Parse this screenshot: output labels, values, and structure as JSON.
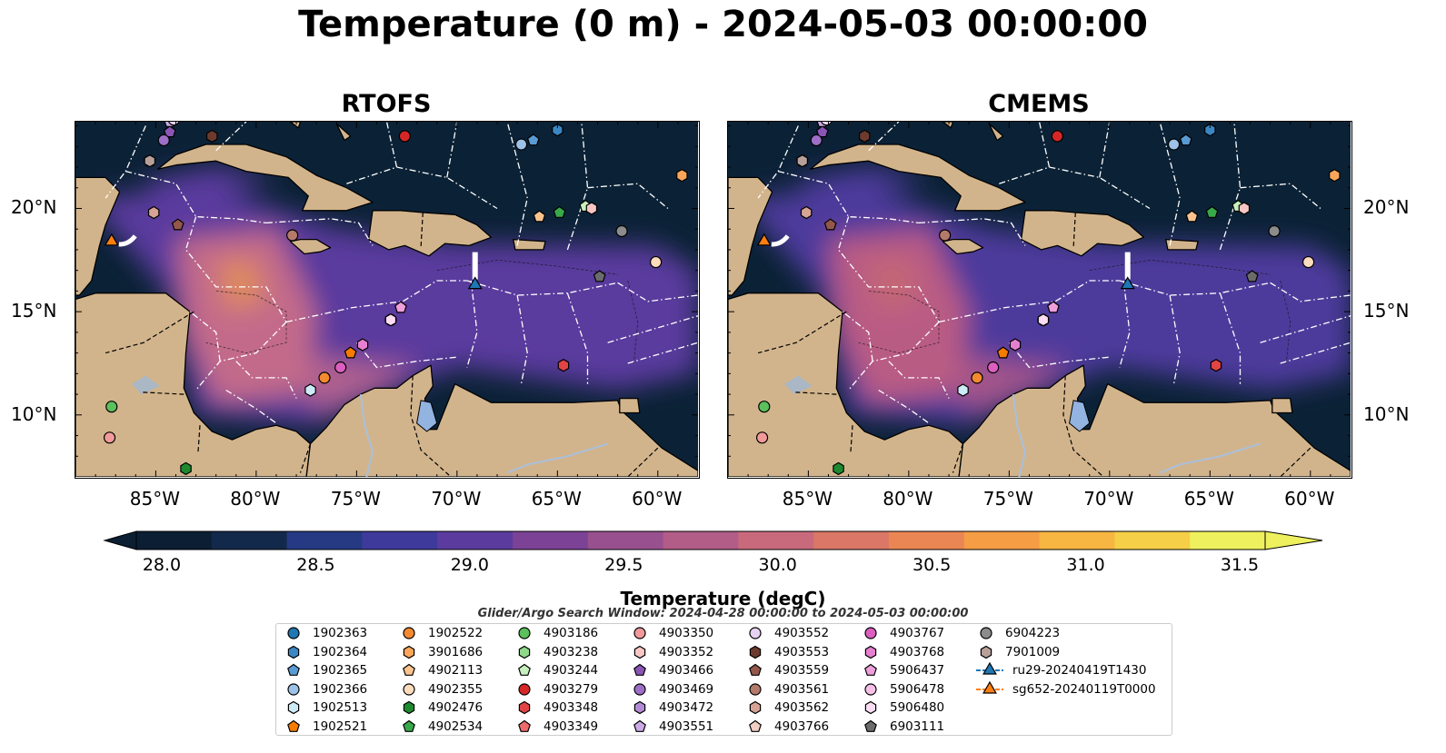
{
  "title": "Temperature (0 m) - 2024-05-03 00:00:00",
  "panels": [
    {
      "title": "RTOFS",
      "colors": {
        "base": "#5a3a9e",
        "warm": "#c36a8a",
        "hot": "#f0a040",
        "cold": "#0b2236"
      }
    },
    {
      "title": "CMEMS",
      "colors": {
        "base": "#4e3a9c",
        "warm": "#b95c84",
        "hot": "#e88a48",
        "cold": "#0b2236"
      }
    }
  ],
  "map": {
    "lon_range": [
      -89,
      -58
    ],
    "lat_range": [
      7,
      24.2
    ],
    "x_ticks": [
      "85°W",
      "80°W",
      "75°W",
      "70°W",
      "65°W",
      "60°W"
    ],
    "y_ticks": [
      "20°N",
      "15°N",
      "10°N"
    ],
    "land_color": "#d2b48c",
    "lake_color": "#93b3e0"
  },
  "colorbar": {
    "label": "Temperature (degC)",
    "ticks": [
      "28.0",
      "28.5",
      "29.0",
      "29.5",
      "30.0",
      "30.5",
      "31.0",
      "31.5"
    ],
    "colors": [
      "#0b1e33",
      "#13294b",
      "#253a83",
      "#3e3a9b",
      "#5b3c9e",
      "#7b4296",
      "#99508f",
      "#b25c88",
      "#c96a7c",
      "#da7766",
      "#ea8653",
      "#f59d45",
      "#f7b541",
      "#f5cf47",
      "#eef05e"
    ]
  },
  "search_window": "Glider/Argo Search Window: 2024-04-28 00:00:00 to 2024-05-03 00:00:00",
  "legend": [
    {
      "label": "1902363",
      "marker": "circle",
      "color": "#1f77b4"
    },
    {
      "label": "1902364",
      "marker": "hexagon",
      "color": "#3a87c4"
    },
    {
      "label": "1902365",
      "marker": "pentagon",
      "color": "#5a9bd3"
    },
    {
      "label": "1902366",
      "marker": "circle",
      "color": "#9cc2e8"
    },
    {
      "label": "1902513",
      "marker": "hexagon",
      "color": "#cdeaf7"
    },
    {
      "label": "1902521",
      "marker": "pentagon",
      "color": "#f57c00"
    },
    {
      "label": "1902522",
      "marker": "circle",
      "color": "#f48a30"
    },
    {
      "label": "3901686",
      "marker": "hexagon",
      "color": "#f9a65a"
    },
    {
      "label": "4902113",
      "marker": "pentagon",
      "color": "#fbc48f"
    },
    {
      "label": "4902355",
      "marker": "circle",
      "color": "#fddcbd"
    },
    {
      "label": "4902476",
      "marker": "hexagon",
      "color": "#1e8a2e"
    },
    {
      "label": "4902534",
      "marker": "pentagon",
      "color": "#38a94a"
    },
    {
      "label": "4903186",
      "marker": "circle",
      "color": "#5cc05c"
    },
    {
      "label": "4903238",
      "marker": "hexagon",
      "color": "#8fd88a"
    },
    {
      "label": "4903244",
      "marker": "pentagon",
      "color": "#c6f0bd"
    },
    {
      "label": "4903279",
      "marker": "circle",
      "color": "#d62728"
    },
    {
      "label": "4903348",
      "marker": "hexagon",
      "color": "#e04444"
    },
    {
      "label": "4903349",
      "marker": "pentagon",
      "color": "#ec6c6c"
    },
    {
      "label": "4903350",
      "marker": "circle",
      "color": "#f29a9a"
    },
    {
      "label": "4903352",
      "marker": "hexagon",
      "color": "#f8c6c3"
    },
    {
      "label": "4903466",
      "marker": "pentagon",
      "color": "#8a55b5"
    },
    {
      "label": "4903469",
      "marker": "circle",
      "color": "#9d6fc7"
    },
    {
      "label": "4903472",
      "marker": "hexagon",
      "color": "#b48ad6"
    },
    {
      "label": "4903551",
      "marker": "pentagon",
      "color": "#cbabe6"
    },
    {
      "label": "4903552",
      "marker": "circle",
      "color": "#e6d2f3"
    },
    {
      "label": "4903553",
      "marker": "hexagon",
      "color": "#6d3b2e"
    },
    {
      "label": "4903559",
      "marker": "pentagon",
      "color": "#94584a"
    },
    {
      "label": "4903561",
      "marker": "circle",
      "color": "#b47a6c"
    },
    {
      "label": "4903562",
      "marker": "hexagon",
      "color": "#d6a394"
    },
    {
      "label": "4903766",
      "marker": "pentagon",
      "color": "#f1cec3"
    },
    {
      "label": "4903767",
      "marker": "circle",
      "color": "#dc5fc0"
    },
    {
      "label": "4903768",
      "marker": "hexagon",
      "color": "#e57fcf"
    },
    {
      "label": "5906437",
      "marker": "pentagon",
      "color": "#ee9fdb"
    },
    {
      "label": "5906478",
      "marker": "circle",
      "color": "#f5c0e8"
    },
    {
      "label": "5906480",
      "marker": "hexagon",
      "color": "#fbdcf3"
    },
    {
      "label": "6903111",
      "marker": "pentagon",
      "color": "#6b6b6b"
    },
    {
      "label": "6904223",
      "marker": "circle",
      "color": "#8c8c8c"
    },
    {
      "label": "7901009",
      "marker": "hexagon",
      "color": "#b8a09a"
    },
    {
      "label": "ru29-20240419T1430",
      "marker": "triangle",
      "color": "#1f77b4",
      "line": true
    },
    {
      "label": "sg652-20240119T0000",
      "marker": "triangle",
      "color": "#ff7f0e",
      "line": true
    }
  ],
  "floats": [
    {
      "label": "1902364",
      "lon": -65.0,
      "lat": 23.8
    },
    {
      "label": "1902365",
      "lon": -66.2,
      "lat": 23.3
    },
    {
      "label": "1902366",
      "lon": -66.8,
      "lat": 23.1
    },
    {
      "label": "1902513",
      "lon": -77.3,
      "lat": 11.2
    },
    {
      "label": "1902521",
      "lon": -75.3,
      "lat": 13.0
    },
    {
      "label": "1902522",
      "lon": -76.6,
      "lat": 11.8
    },
    {
      "label": "3901686",
      "lon": -58.8,
      "lat": 21.6
    },
    {
      "label": "4902113",
      "lon": -65.9,
      "lat": 19.6
    },
    {
      "label": "4902355",
      "lon": -60.1,
      "lat": 17.4
    },
    {
      "label": "4902476",
      "lon": -83.5,
      "lat": 7.4
    },
    {
      "label": "4902534",
      "lon": -64.9,
      "lat": 19.8
    },
    {
      "label": "4903186",
      "lon": -87.2,
      "lat": 10.4
    },
    {
      "label": "4903244",
      "lon": -63.6,
      "lat": 20.1
    },
    {
      "label": "4903279",
      "lon": -72.6,
      "lat": 23.5
    },
    {
      "label": "4903348",
      "lon": -64.7,
      "lat": 12.4
    },
    {
      "label": "4903352",
      "lon": -63.3,
      "lat": 20.0
    },
    {
      "label": "4903466",
      "lon": -84.3,
      "lat": 23.7
    },
    {
      "label": "4903469",
      "lon": -84.6,
      "lat": 23.3
    },
    {
      "label": "4903551",
      "lon": -84.3,
      "lat": 24.2
    },
    {
      "label": "4903552",
      "lon": -84.1,
      "lat": 24.3
    },
    {
      "label": "4903553",
      "lon": -82.2,
      "lat": 23.5
    },
    {
      "label": "4903559",
      "lon": -83.9,
      "lat": 19.2
    },
    {
      "label": "4903561",
      "lon": -78.2,
      "lat": 18.7
    },
    {
      "label": "4903562",
      "lon": -85.1,
      "lat": 19.8
    },
    {
      "label": "4903766",
      "lon": -85.3,
      "lat": 22.3
    },
    {
      "label": "4903767",
      "lon": -75.8,
      "lat": 12.3
    },
    {
      "label": "4903768",
      "lon": -74.7,
      "lat": 13.4
    },
    {
      "label": "5906437",
      "lon": -72.8,
      "lat": 15.2
    },
    {
      "label": "5906478",
      "lon": -73.3,
      "lat": 14.6
    },
    {
      "label": "5906480",
      "lon": -73.3,
      "lat": 14.6
    },
    {
      "label": "6903111",
      "lon": -62.9,
      "lat": 16.7
    },
    {
      "label": "6904223",
      "lon": -61.8,
      "lat": 18.9
    },
    {
      "label": "7901009",
      "lon": -85.3,
      "lat": 22.3
    },
    {
      "label": "4903350",
      "lon": -87.3,
      "lat": 8.9
    }
  ],
  "gliders": [
    {
      "label": "ru29-20240419T1430",
      "lon": -69.1,
      "lat": 16.3
    },
    {
      "label": "sg652-20240119T0000",
      "lon": -87.2,
      "lat": 18.4
    }
  ]
}
